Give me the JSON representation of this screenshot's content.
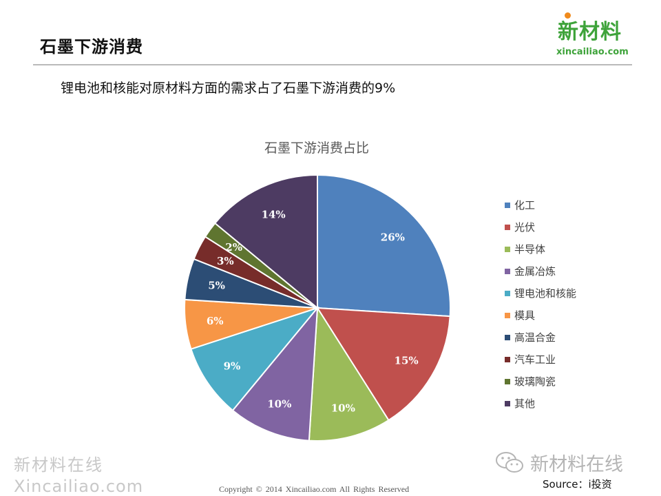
{
  "header": {
    "title": "石墨下游消费"
  },
  "logo": {
    "cn": "新材料",
    "en": "xincailiao.com"
  },
  "subtitle": "锂电池和核能对原材料方面的需求占了石墨下游消费的9%",
  "chart_data": {
    "type": "pie",
    "title": "石墨下游消费占比",
    "legend_position": "right",
    "slices": [
      {
        "name": "化工",
        "value": 26,
        "label": "26%",
        "color": "#4f81bd"
      },
      {
        "name": "光伏",
        "value": 15,
        "label": "15%",
        "color": "#c0504d"
      },
      {
        "name": "半导体",
        "value": 10,
        "label": "10%",
        "color": "#9bbb59"
      },
      {
        "name": "金属冶炼",
        "value": 10,
        "label": "10%",
        "color": "#8064a2"
      },
      {
        "name": "锂电池和核能",
        "value": 9,
        "label": "9%",
        "color": "#4bacc6"
      },
      {
        "name": "模具",
        "value": 6,
        "label": "6%",
        "color": "#f79646"
      },
      {
        "name": "高温合金",
        "value": 5,
        "label": "5%",
        "color": "#2c4d75"
      },
      {
        "name": "汽车工业",
        "value": 3,
        "label": "3%",
        "color": "#772c2a"
      },
      {
        "name": "玻璃陶瓷",
        "value": 2,
        "label": "2%",
        "color": "#5f7530"
      },
      {
        "name": "其他",
        "value": 14,
        "label": "14%",
        "color": "#4d3b62"
      }
    ]
  },
  "watermark": {
    "cn": "新材料在线",
    "en": "Xincailiao.com",
    "right": "新材料在线"
  },
  "footer": {
    "copyright": "Copyright © 2014   Xincailiao.com    All Rights Reserved",
    "source": "Source：i投资"
  }
}
